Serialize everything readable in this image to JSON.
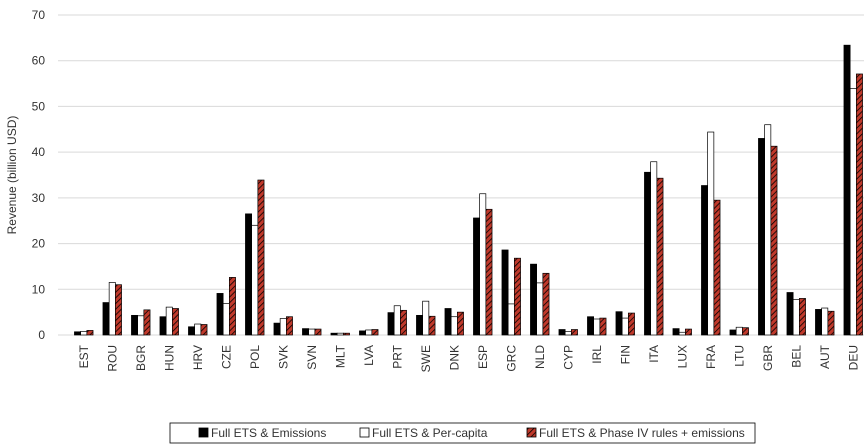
{
  "chart_data": {
    "type": "bar",
    "y_label": "Revenue (billion USD)",
    "categories": [
      "EST",
      "ROU",
      "BGR",
      "HUN",
      "HRV",
      "CZE",
      "POL",
      "SVK",
      "SVN",
      "MLT",
      "LVA",
      "PRT",
      "SWE",
      "DNK",
      "ESP",
      "GRC",
      "NLD",
      "CYP",
      "IRL",
      "FIN",
      "ITA",
      "LUX",
      "FRA",
      "LTU",
      "GBR",
      "BEL",
      "AUT",
      "DEU"
    ],
    "series": [
      {
        "name": "Full ETS & Emissions",
        "color": "#000000",
        "pattern": "solid",
        "values": [
          0.7,
          7.1,
          4.3,
          4.0,
          1.8,
          9.1,
          26.5,
          2.6,
          1.4,
          0.4,
          0.9,
          4.9,
          4.3,
          5.8,
          25.6,
          18.6,
          15.5,
          1.2,
          4.0,
          5.1,
          35.6,
          1.4,
          32.7,
          1.1,
          43.0,
          9.3,
          5.6,
          63.4
        ]
      },
      {
        "name": "Full ETS & Per-capita",
        "color": "#ffffff",
        "pattern": "solid",
        "values": [
          0.8,
          11.5,
          4.2,
          6.1,
          2.4,
          6.9,
          24.0,
          3.6,
          1.3,
          0.4,
          1.1,
          6.4,
          7.4,
          4.0,
          30.9,
          6.8,
          11.4,
          0.8,
          3.5,
          3.7,
          37.9,
          0.6,
          44.4,
          1.7,
          46.0,
          7.8,
          5.9,
          53.9
        ]
      },
      {
        "name": "Full ETS & Phase IV rules + emissions",
        "color": "#c0392b",
        "pattern": "hatch",
        "values": [
          1.0,
          11.0,
          5.5,
          5.8,
          2.3,
          12.6,
          33.9,
          4.0,
          1.3,
          0.4,
          1.2,
          5.4,
          4.1,
          5.0,
          27.5,
          16.8,
          13.5,
          1.2,
          3.7,
          4.8,
          34.3,
          1.3,
          29.5,
          1.6,
          41.3,
          8.0,
          5.2,
          57.1
        ]
      }
    ],
    "ylim": [
      0,
      70
    ],
    "yticks": [
      0,
      10,
      20,
      30,
      40,
      50,
      60,
      70
    ],
    "grid": true,
    "legend": "bottom"
  }
}
